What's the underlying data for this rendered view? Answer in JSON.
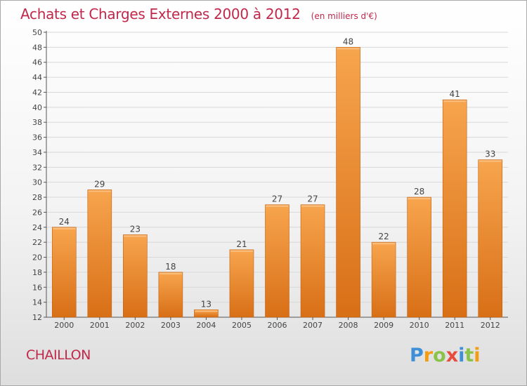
{
  "chart_data": {
    "type": "bar",
    "title": "Achats et Charges Externes 2000 à 2012",
    "unit": "(en milliers d'€)",
    "categories": [
      "2000",
      "2001",
      "2002",
      "2003",
      "2004",
      "2005",
      "2006",
      "2007",
      "2008",
      "2009",
      "2010",
      "2011",
      "2012"
    ],
    "values": [
      24,
      29,
      23,
      18,
      13,
      21,
      27,
      27,
      48,
      22,
      28,
      41,
      33
    ],
    "ylim": [
      12,
      50
    ],
    "yticks": [
      12,
      14,
      16,
      18,
      20,
      22,
      24,
      26,
      28,
      30,
      32,
      34,
      36,
      38,
      40,
      42,
      44,
      46,
      48,
      50
    ],
    "grid": true,
    "legend": "none",
    "colors": {
      "bar_top": "#f7a54e",
      "bar_bottom": "#d86f16",
      "bar_edge": "#c06010",
      "grid": "#d8d8d8"
    }
  },
  "commune": "CHAILLON",
  "logo": {
    "letters": [
      "P",
      "r",
      "o",
      "x",
      "i",
      "t",
      "i"
    ],
    "colors": [
      "#3d8fd8",
      "#f39c12",
      "#8bc34a",
      "#e74c3c",
      "#3d8fd8",
      "#8bc34a",
      "#f39c12"
    ]
  }
}
